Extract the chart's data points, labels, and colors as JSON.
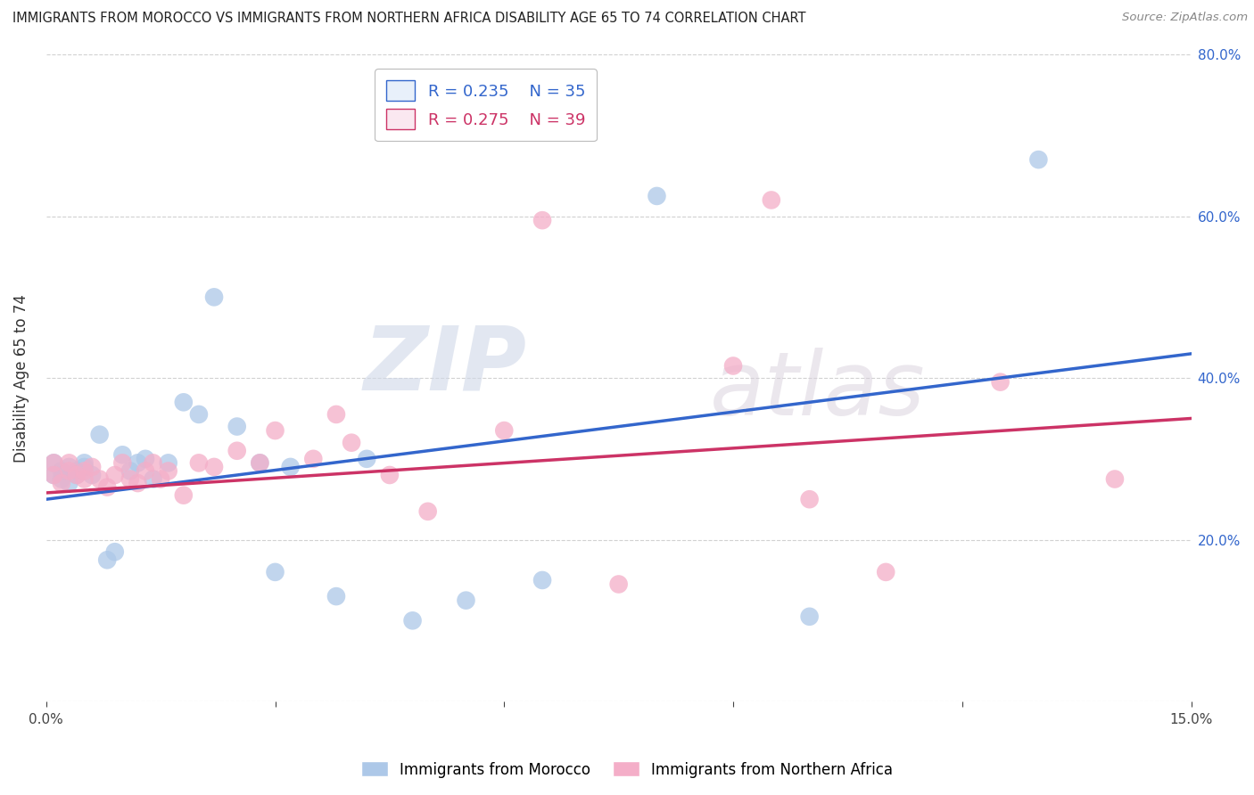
{
  "title": "IMMIGRANTS FROM MOROCCO VS IMMIGRANTS FROM NORTHERN AFRICA DISABILITY AGE 65 TO 74 CORRELATION CHART",
  "source": "Source: ZipAtlas.com",
  "ylabel": "Disability Age 65 to 74",
  "xlim": [
    0.0,
    0.15
  ],
  "ylim": [
    0.0,
    0.8
  ],
  "morocco_R": 0.235,
  "morocco_N": 35,
  "northern_africa_R": 0.275,
  "northern_africa_N": 39,
  "morocco_color": "#adc8e8",
  "northern_africa_color": "#f4aec8",
  "morocco_line_color": "#3366cc",
  "northern_africa_line_color": "#cc3366",
  "morocco_x": [
    0.001,
    0.001,
    0.002,
    0.002,
    0.003,
    0.003,
    0.004,
    0.004,
    0.005,
    0.005,
    0.006,
    0.007,
    0.008,
    0.009,
    0.01,
    0.011,
    0.012,
    0.013,
    0.014,
    0.016,
    0.018,
    0.02,
    0.022,
    0.025,
    0.028,
    0.03,
    0.032,
    0.038,
    0.042,
    0.048,
    0.055,
    0.065,
    0.08,
    0.1,
    0.13
  ],
  "morocco_y": [
    0.28,
    0.295,
    0.275,
    0.285,
    0.27,
    0.29,
    0.28,
    0.285,
    0.29,
    0.295,
    0.28,
    0.33,
    0.175,
    0.185,
    0.305,
    0.285,
    0.295,
    0.3,
    0.275,
    0.295,
    0.37,
    0.355,
    0.5,
    0.34,
    0.295,
    0.16,
    0.29,
    0.13,
    0.3,
    0.1,
    0.125,
    0.15,
    0.625,
    0.105,
    0.67
  ],
  "northern_africa_x": [
    0.001,
    0.001,
    0.002,
    0.003,
    0.003,
    0.004,
    0.005,
    0.005,
    0.006,
    0.007,
    0.008,
    0.009,
    0.01,
    0.011,
    0.012,
    0.013,
    0.014,
    0.015,
    0.016,
    0.018,
    0.02,
    0.022,
    0.025,
    0.028,
    0.03,
    0.035,
    0.038,
    0.04,
    0.045,
    0.05,
    0.06,
    0.065,
    0.075,
    0.09,
    0.095,
    0.1,
    0.11,
    0.125,
    0.14
  ],
  "northern_africa_y": [
    0.28,
    0.295,
    0.27,
    0.285,
    0.295,
    0.28,
    0.275,
    0.285,
    0.29,
    0.275,
    0.265,
    0.28,
    0.295,
    0.275,
    0.27,
    0.285,
    0.295,
    0.275,
    0.285,
    0.255,
    0.295,
    0.29,
    0.31,
    0.295,
    0.335,
    0.3,
    0.355,
    0.32,
    0.28,
    0.235,
    0.335,
    0.595,
    0.145,
    0.415,
    0.62,
    0.25,
    0.16,
    0.395,
    0.275
  ],
  "watermark_zip": "ZIP",
  "watermark_atlas": "atlas",
  "background_color": "#ffffff",
  "grid_color": "#cccccc",
  "legend_box_color": "#e8f0fa",
  "legend_box_color2": "#fae8f0"
}
